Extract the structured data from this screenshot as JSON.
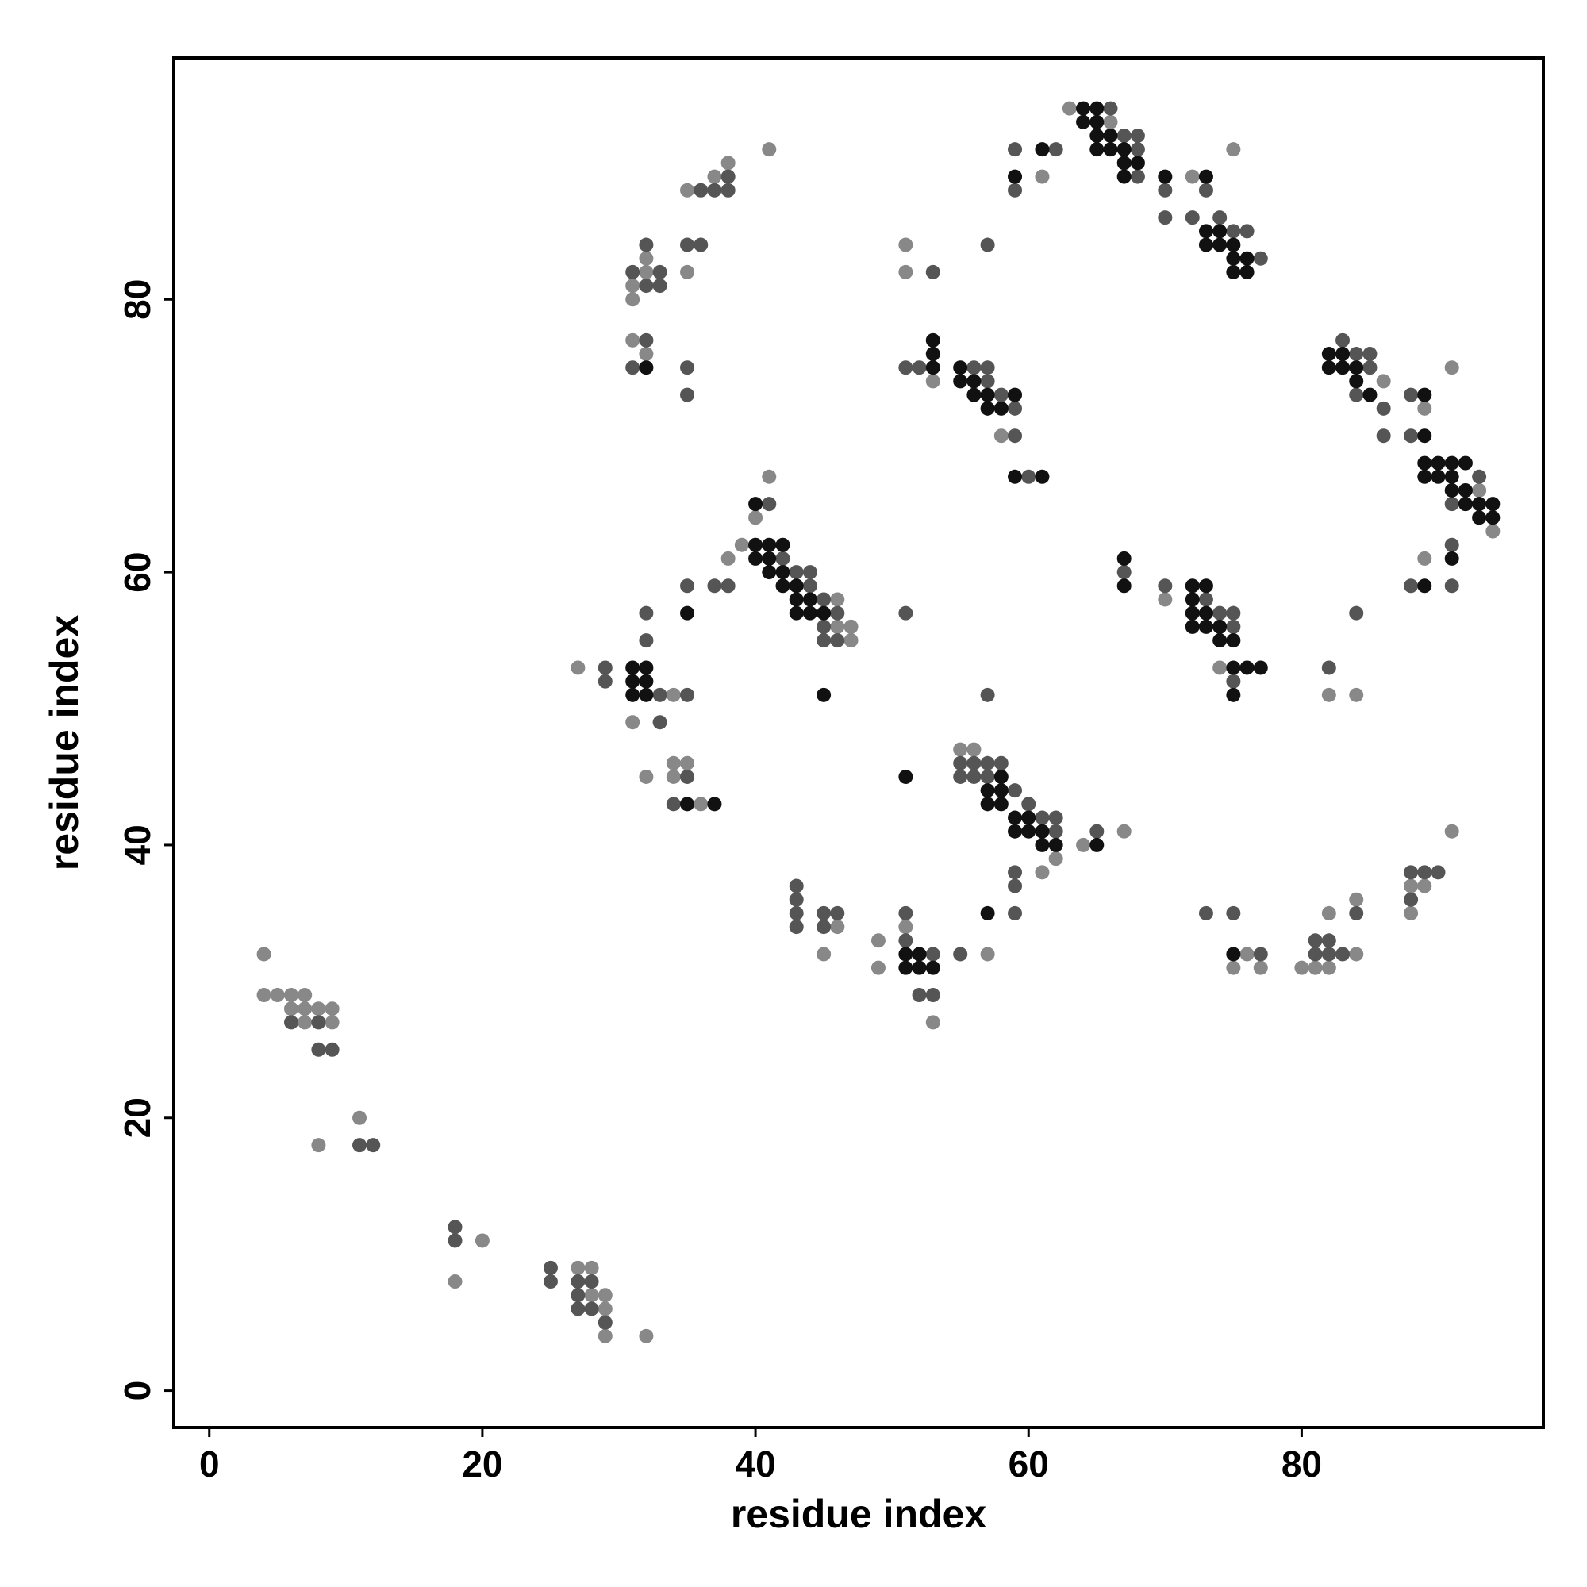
{
  "chart_data": {
    "type": "scatter",
    "xlabel": "residue index",
    "ylabel": "residue index",
    "xlim": [
      -2.6,
      97.7
    ],
    "ylim": [
      -2.7,
      97.7
    ],
    "xticks": [
      0,
      20,
      40,
      60,
      80
    ],
    "yticks": [
      0,
      20,
      40,
      60,
      80
    ],
    "series": [
      {
        "color": "#888888",
        "x": [
          4,
          4,
          5,
          6,
          7,
          6,
          7,
          8,
          9,
          7,
          9,
          8,
          11,
          20,
          18,
          27,
          28,
          28,
          29,
          29,
          29,
          32,
          27,
          31,
          34,
          34,
          35,
          32,
          34,
          36,
          38,
          39,
          40,
          41,
          46,
          46,
          47,
          47,
          32,
          31,
          31,
          32,
          31,
          32,
          35,
          35,
          37,
          38,
          41,
          46,
          45,
          49,
          49,
          51,
          53,
          57,
          55,
          56,
          62,
          61,
          64,
          67,
          51,
          51,
          53,
          58,
          61,
          63,
          66,
          70,
          72,
          75,
          74,
          76,
          75,
          77,
          80,
          81,
          82,
          82,
          84,
          82,
          84,
          84,
          88,
          89,
          88,
          91,
          91,
          89,
          89,
          94,
          86,
          93
        ],
        "values": [
          32,
          29,
          29,
          29,
          29,
          28,
          28,
          28,
          28,
          27,
          27,
          18,
          20,
          11,
          8,
          9,
          9,
          7,
          7,
          6,
          4,
          4,
          53,
          49,
          51,
          46,
          46,
          45,
          45,
          43,
          61,
          62,
          64,
          67,
          58,
          56,
          56,
          55,
          82,
          81,
          80,
          83,
          77,
          76,
          82,
          88,
          89,
          90,
          91,
          34,
          32,
          33,
          31,
          34,
          27,
          32,
          47,
          47,
          39,
          38,
          40,
          41,
          84,
          82,
          74,
          70,
          89,
          94,
          93,
          58,
          89,
          91,
          53,
          32,
          31,
          31,
          31,
          31,
          31,
          35,
          32,
          51,
          51,
          36,
          35,
          37,
          37,
          41,
          75,
          72,
          61,
          63,
          74,
          66
        ]
      },
      {
        "color": "#555555",
        "x": [
          6,
          8,
          8,
          9,
          11,
          12,
          18,
          18,
          25,
          25,
          27,
          28,
          27,
          27,
          28,
          29,
          29,
          29,
          33,
          35,
          33,
          32,
          32,
          35,
          37,
          38,
          35,
          34,
          41,
          42,
          44,
          43,
          44,
          45,
          45,
          45,
          46,
          46,
          33,
          33,
          32,
          31,
          32,
          36,
          35,
          36,
          37,
          38,
          38,
          31,
          32,
          35,
          35,
          43,
          43,
          43,
          43,
          45,
          45,
          46,
          51,
          51,
          53,
          52,
          53,
          55,
          55,
          56,
          55,
          56,
          57,
          58,
          57,
          59,
          60,
          61,
          62,
          62,
          59,
          59,
          59,
          57,
          65,
          51,
          51,
          52,
          53,
          57,
          56,
          57,
          57,
          58,
          59,
          59,
          60,
          59,
          62,
          59,
          66,
          67,
          68,
          68,
          68,
          70,
          70,
          72,
          73,
          74,
          75,
          76,
          77,
          67,
          70,
          73,
          74,
          75,
          75,
          75,
          73,
          75,
          77,
          82,
          84,
          81,
          82,
          81,
          82,
          83,
          84,
          88,
          88,
          89,
          90,
          83,
          84,
          85,
          85,
          84,
          86,
          86,
          88,
          88,
          93,
          91,
          91,
          88,
          91
        ],
        "values": [
          27,
          27,
          25,
          25,
          18,
          18,
          12,
          11,
          9,
          8,
          8,
          8,
          7,
          6,
          6,
          5,
          53,
          52,
          51,
          51,
          49,
          57,
          55,
          59,
          59,
          59,
          45,
          43,
          65,
          61,
          60,
          60,
          59,
          58,
          56,
          55,
          57,
          55,
          82,
          81,
          81,
          82,
          84,
          84,
          84,
          88,
          88,
          88,
          89,
          75,
          77,
          75,
          73,
          37,
          36,
          35,
          34,
          35,
          34,
          35,
          35,
          33,
          32,
          29,
          29,
          32,
          46,
          46,
          45,
          45,
          46,
          46,
          45,
          44,
          43,
          42,
          42,
          41,
          38,
          37,
          35,
          51,
          41,
          57,
          75,
          75,
          82,
          84,
          75,
          75,
          74,
          73,
          72,
          70,
          67,
          88,
          91,
          91,
          94,
          92,
          92,
          91,
          89,
          88,
          86,
          86,
          88,
          86,
          85,
          85,
          83,
          60,
          59,
          58,
          57,
          57,
          56,
          52,
          35,
          35,
          32,
          53,
          57,
          33,
          33,
          32,
          32,
          32,
          35,
          36,
          38,
          38,
          38,
          77,
          76,
          76,
          75,
          73,
          72,
          70,
          73,
          70,
          67,
          65,
          62,
          59,
          59
        ]
      },
      {
        "color": "#111111",
        "x": [
          31,
          32,
          31,
          32,
          31,
          32,
          35,
          35,
          37,
          40,
          40,
          41,
          42,
          40,
          41,
          41,
          42,
          42,
          43,
          43,
          44,
          43,
          44,
          45,
          45,
          51,
          52,
          51,
          52,
          53,
          57,
          51,
          53,
          53,
          53,
          32,
          55,
          55,
          56,
          56,
          57,
          57,
          58,
          59,
          59,
          61,
          59,
          61,
          64,
          65,
          64,
          65,
          65,
          66,
          65,
          66,
          67,
          67,
          68,
          67,
          73,
          74,
          73,
          74,
          75,
          75,
          76,
          75,
          76,
          57,
          57,
          58,
          58,
          59,
          60,
          59,
          60,
          61,
          61,
          62,
          65,
          58,
          67,
          67,
          72,
          73,
          72,
          72,
          73,
          72,
          73,
          74,
          74,
          75,
          75,
          76,
          77,
          75,
          75,
          82,
          83,
          82,
          83,
          84,
          84,
          85,
          89,
          90,
          91,
          92,
          89,
          90,
          91,
          91,
          92,
          92,
          93,
          94,
          93,
          94,
          91,
          89,
          89,
          89,
          70,
          73
        ],
        "values": [
          53,
          53,
          52,
          52,
          51,
          51,
          57,
          43,
          43,
          65,
          62,
          62,
          62,
          61,
          61,
          60,
          60,
          59,
          59,
          58,
          58,
          57,
          57,
          57,
          51,
          32,
          32,
          31,
          31,
          31,
          35,
          45,
          77,
          76,
          75,
          75,
          75,
          74,
          74,
          73,
          73,
          72,
          72,
          73,
          67,
          67,
          89,
          91,
          94,
          94,
          93,
          93,
          92,
          92,
          91,
          91,
          91,
          90,
          90,
          89,
          85,
          85,
          84,
          84,
          84,
          83,
          83,
          82,
          82,
          44,
          43,
          43,
          44,
          42,
          42,
          41,
          41,
          41,
          40,
          40,
          40,
          45,
          61,
          59,
          59,
          59,
          58,
          57,
          57,
          56,
          56,
          56,
          55,
          55,
          53,
          53,
          53,
          51,
          32,
          76,
          76,
          75,
          75,
          75,
          74,
          73,
          68,
          68,
          68,
          68,
          67,
          67,
          67,
          66,
          66,
          65,
          65,
          65,
          64,
          64,
          61,
          59,
          70,
          73,
          89,
          89
        ]
      }
    ]
  }
}
